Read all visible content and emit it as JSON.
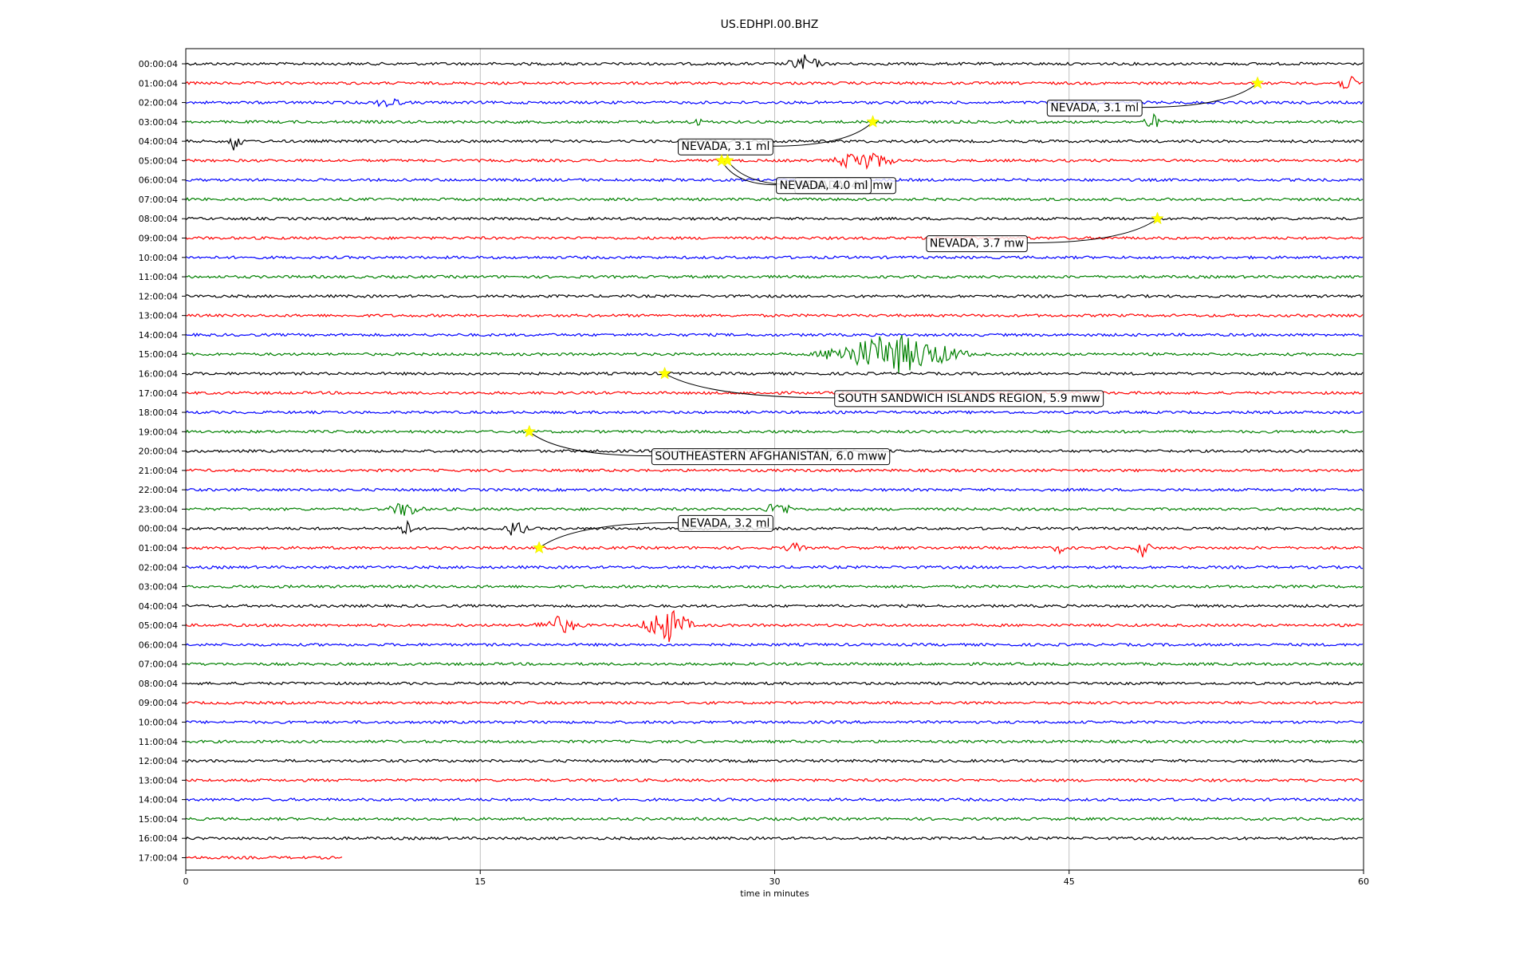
{
  "chart_data": {
    "type": "line",
    "title": "US.EDHPI.00.BHZ",
    "xlabel": "time in minutes",
    "xlim": [
      0,
      60
    ],
    "x_ticks": [
      "0",
      "15",
      "30",
      "45",
      "60"
    ],
    "grid": "vertical gridlines at x ticks",
    "row_labels": [
      "00:00:04",
      "01:00:04",
      "02:00:04",
      "03:00:04",
      "04:00:04",
      "05:00:04",
      "06:00:04",
      "07:00:04",
      "08:00:04",
      "09:00:04",
      "10:00:04",
      "11:00:04",
      "12:00:04",
      "13:00:04",
      "14:00:04",
      "15:00:04",
      "16:00:04",
      "17:00:04",
      "18:00:04",
      "19:00:04",
      "20:00:04",
      "21:00:04",
      "22:00:04",
      "23:00:04",
      "00:00:04",
      "01:00:04",
      "02:00:04",
      "03:00:04",
      "04:00:04",
      "05:00:04",
      "06:00:04",
      "07:00:04",
      "08:00:04",
      "09:00:04",
      "10:00:04",
      "11:00:04",
      "12:00:04",
      "13:00:04",
      "14:00:04",
      "15:00:04",
      "16:00:04",
      "17:00:04"
    ],
    "trace_colors": [
      "#000000",
      "#ff0000",
      "#0000ff",
      "#008000"
    ],
    "last_row_end_minute": 8,
    "bursts": [
      {
        "row": 0,
        "minute": 31.5,
        "amp": 0.5,
        "width": 1.2
      },
      {
        "row": 1,
        "minute": 59.2,
        "amp": 0.45,
        "width": 0.8
      },
      {
        "row": 2,
        "minute": 10.3,
        "amp": 0.35,
        "width": 1.0
      },
      {
        "row": 3,
        "minute": 26.0,
        "amp": 0.25,
        "width": 0.6
      },
      {
        "row": 3,
        "minute": 49.2,
        "amp": 0.5,
        "width": 0.6
      },
      {
        "row": 4,
        "minute": 2.5,
        "amp": 0.6,
        "width": 0.5
      },
      {
        "row": 5,
        "minute": 34.5,
        "amp": 0.6,
        "width": 2.0
      },
      {
        "row": 15,
        "minute": 36.0,
        "amp": 1.1,
        "width": 4.5
      },
      {
        "row": 23,
        "minute": 11.2,
        "amp": 0.45,
        "width": 1.2
      },
      {
        "row": 23,
        "minute": 30.2,
        "amp": 0.4,
        "width": 1.2
      },
      {
        "row": 24,
        "minute": 11.2,
        "amp": 0.45,
        "width": 0.8
      },
      {
        "row": 24,
        "minute": 16.8,
        "amp": 0.5,
        "width": 0.8
      },
      {
        "row": 25,
        "minute": 31.0,
        "amp": 0.3,
        "width": 0.8
      },
      {
        "row": 25,
        "minute": 44.5,
        "amp": 0.3,
        "width": 0.6
      },
      {
        "row": 25,
        "minute": 48.8,
        "amp": 0.6,
        "width": 0.5
      },
      {
        "row": 29,
        "minute": 19.0,
        "amp": 0.5,
        "width": 1.6
      },
      {
        "row": 29,
        "minute": 24.5,
        "amp": 1.0,
        "width": 1.6
      }
    ],
    "events": [
      {
        "label": "NEVADA, 3.1 ml",
        "row": 1,
        "minute": 54.6
      },
      {
        "label": "NEVADA, 3.1 ml",
        "row": 3,
        "minute": 35.0
      },
      {
        "label": "NEVADA, 4.0 mw",
        "row": 5,
        "minute": 27.6
      },
      {
        "label": "NEVADA, 4.0 ml",
        "row": 5,
        "minute": 27.3
      },
      {
        "label": "NEVADA, 3.7 mw",
        "row": 8,
        "minute": 49.5
      },
      {
        "label": "SOUTH SANDWICH ISLANDS REGION, 5.9 mww",
        "row": 16,
        "minute": 24.4
      },
      {
        "label": "SOUTHEASTERN AFGHANISTAN, 6.0 mww",
        "row": 19,
        "minute": 17.5
      },
      {
        "label": "NEVADA, 3.2 ml",
        "row": 25,
        "minute": 18.0
      }
    ]
  }
}
